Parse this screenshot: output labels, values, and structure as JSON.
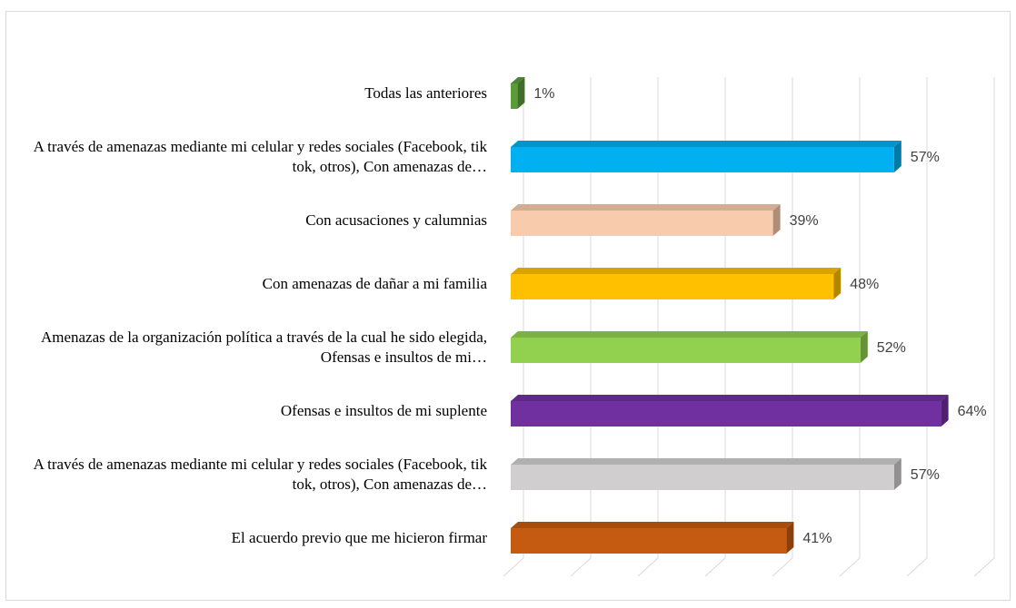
{
  "chart_data": {
    "type": "bar3d-horizontal",
    "categories": [
      "Todas las anteriores",
      "A través de amenazas mediante mi celular y redes sociales (Facebook, tik tok, otros), Con amenazas de…",
      "Con acusaciones y calumnias",
      "Con amenazas de dañar a mi familia",
      "Amenazas de la organización política a través de la cual he sido elegida, Ofensas e insultos de mi…",
      "Ofensas e insultos de mi suplente",
      "A través de amenazas mediante mi celular y redes sociales (Facebook, tik tok, otros), Con amenazas de…",
      "El acuerdo previo que me hicieron firmar"
    ],
    "values": [
      1,
      57,
      39,
      48,
      52,
      64,
      57,
      41
    ],
    "value_labels": [
      "1%",
      "57%",
      "39%",
      "48%",
      "52%",
      "64%",
      "57%",
      "41%"
    ],
    "colors": [
      "#5b9b3a",
      "#00b0f0",
      "#f8cbad",
      "#ffc000",
      "#92d050",
      "#7030a0",
      "#d0cece",
      "#c55a11"
    ],
    "xlim": [
      0,
      70
    ],
    "xticks": [
      0,
      10,
      20,
      30,
      40,
      50,
      60,
      70
    ],
    "grid": true
  }
}
